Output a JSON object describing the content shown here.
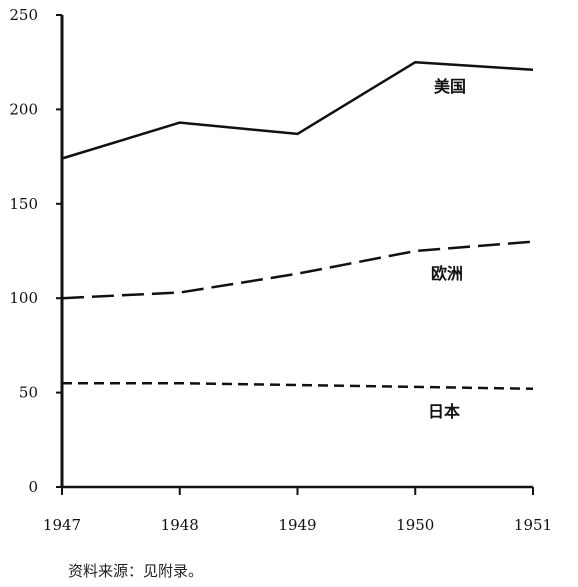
{
  "chart_data": {
    "type": "line",
    "x": [
      1947,
      1948,
      1949,
      1950,
      1951
    ],
    "x_tick_labels": [
      "1947",
      "1948",
      "1949",
      "1950",
      "1951"
    ],
    "y_ticks": [
      0,
      50,
      100,
      150,
      200,
      250
    ],
    "y_tick_labels": [
      "0",
      "50",
      "100",
      "150",
      "200",
      "250"
    ],
    "xlim": [
      1947,
      1951
    ],
    "ylim": [
      0,
      250
    ],
    "grid": false,
    "series": [
      {
        "name": "美国",
        "style": "solid",
        "points": [
          [
            1947,
            174
          ],
          [
            1948,
            193
          ],
          [
            1949,
            187
          ],
          [
            1950,
            225
          ],
          [
            1951,
            221
          ]
        ]
      },
      {
        "name": "欧洲",
        "style": "long-dash",
        "points": [
          [
            1947,
            100
          ],
          [
            1948,
            103
          ],
          [
            1949,
            113
          ],
          [
            1950,
            125
          ],
          [
            1951,
            130
          ]
        ]
      },
      {
        "name": "日本",
        "style": "short-dash",
        "points": [
          [
            1947,
            55
          ],
          [
            1948,
            55
          ],
          [
            1949,
            54
          ],
          [
            1950,
            53
          ],
          [
            1951,
            52
          ]
        ]
      }
    ],
    "series_colors": [
      "#111111",
      "#111111",
      "#111111"
    ],
    "source": "资料来源：见附录。"
  }
}
